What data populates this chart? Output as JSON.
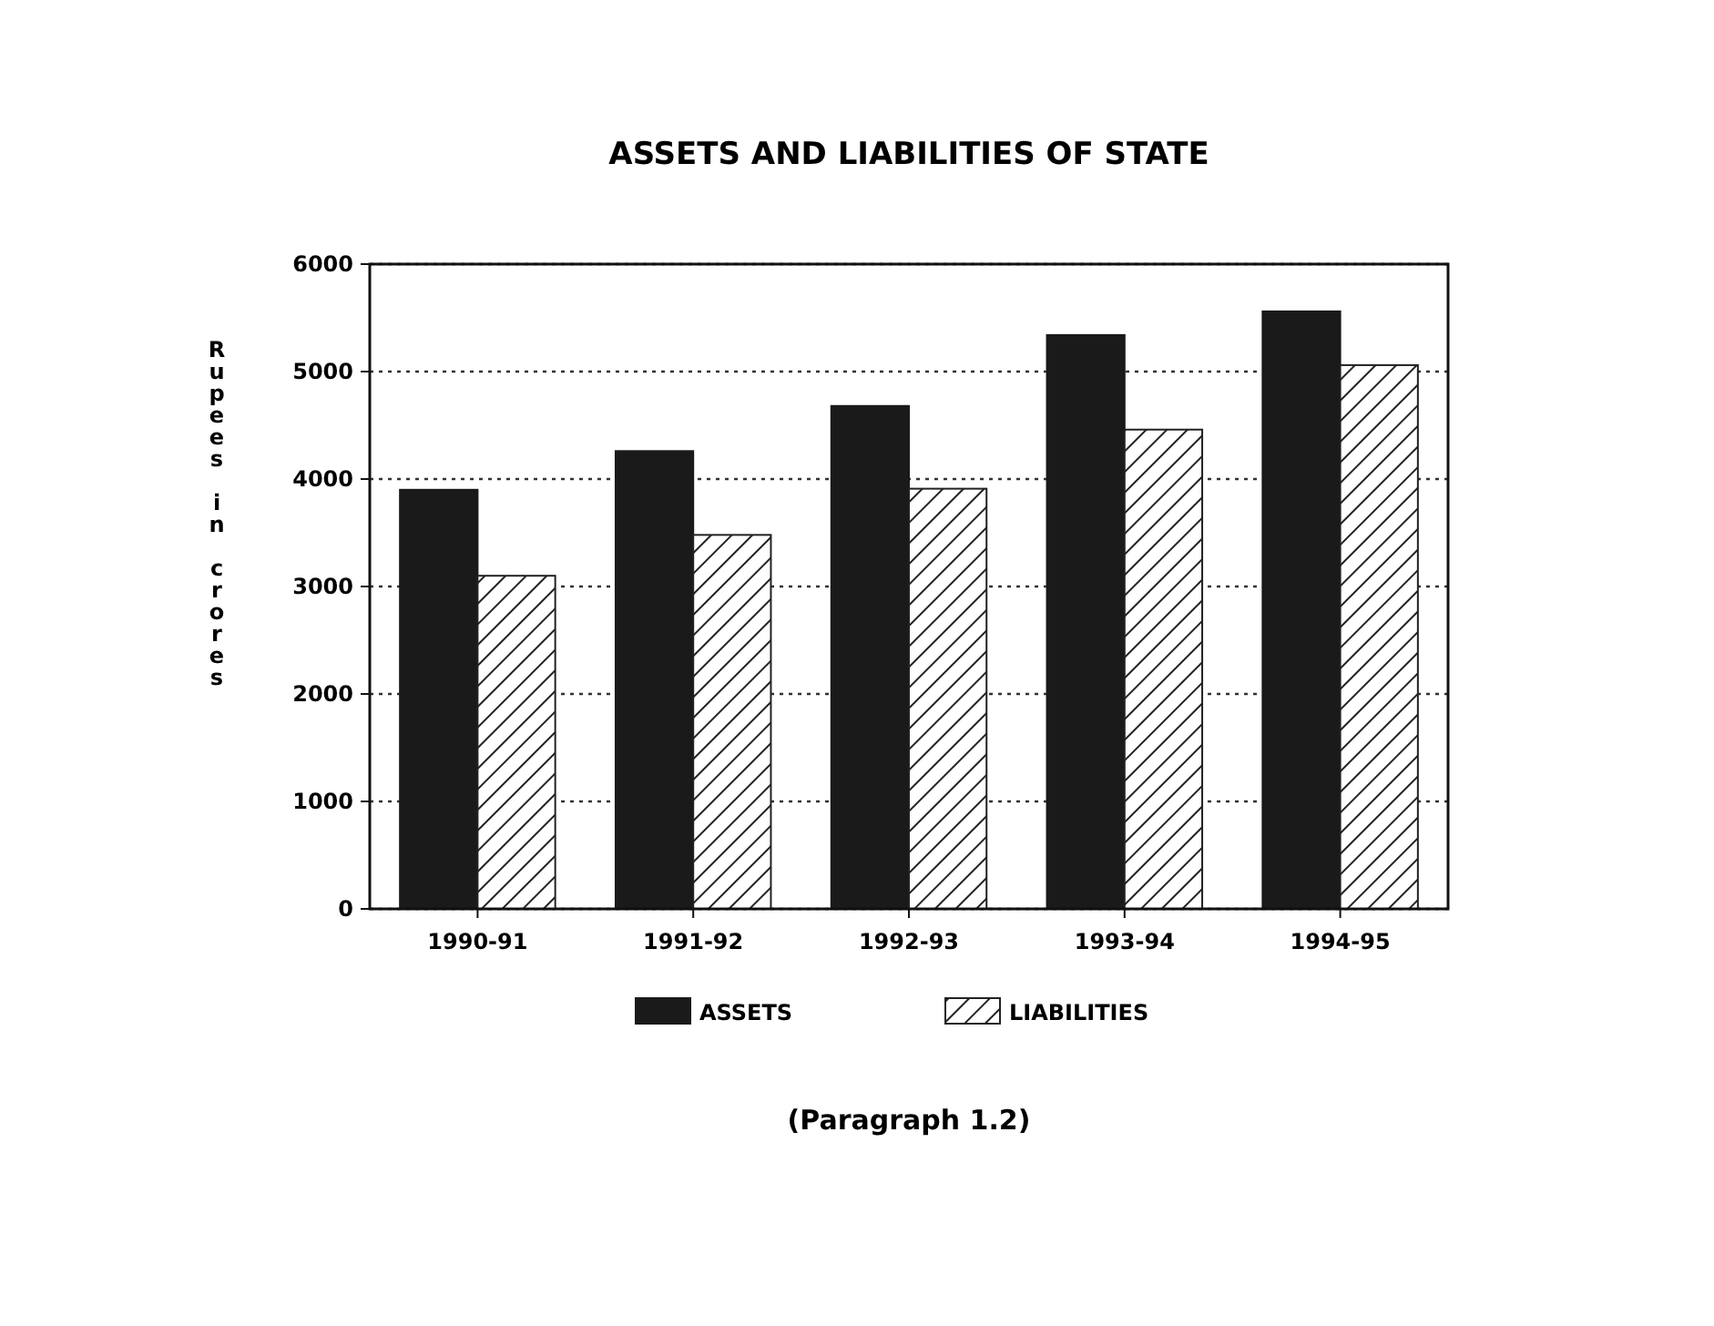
{
  "chart_data": {
    "type": "bar",
    "title": "ASSETS AND LIABILITIES OF STATE",
    "ylabel": "Rupees in crores",
    "categories": [
      "1990-91",
      "1991-92",
      "1992-93",
      "1993-94",
      "1994-95"
    ],
    "series": [
      {
        "name": "ASSETS",
        "color": "#1a1a1a",
        "values": [
          3900,
          4260,
          4680,
          5340,
          5560
        ]
      },
      {
        "name": "LIABILITIES",
        "color": "#222222",
        "values": [
          3100,
          3480,
          3910,
          4460,
          5060
        ]
      }
    ],
    "ylim": [
      0,
      6000
    ],
    "yticks": [
      0,
      1000,
      2000,
      3000,
      4000,
      5000,
      6000
    ],
    "grid": "y",
    "legend": "bottom",
    "annotations": [
      "(Paragraph 1.2)"
    ]
  }
}
